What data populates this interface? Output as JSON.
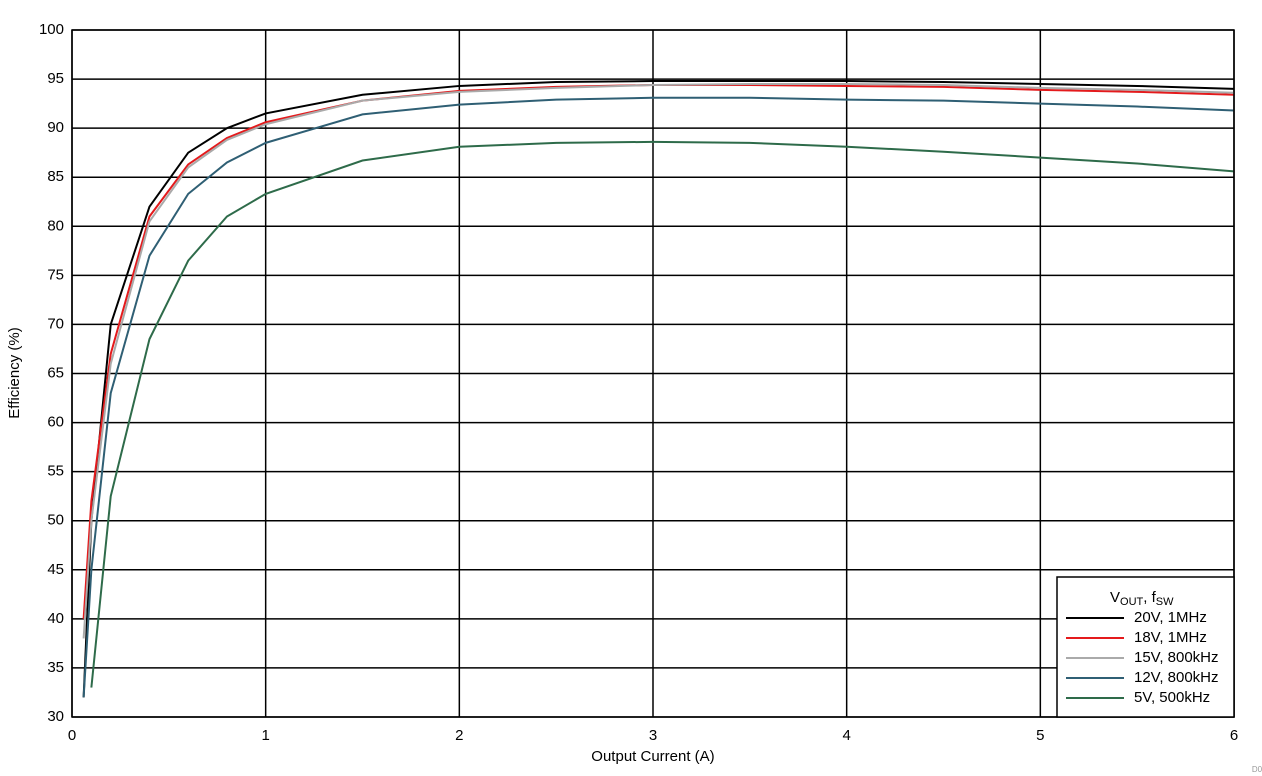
{
  "chart_data": {
    "type": "line",
    "xlabel": "Output Current (A)",
    "ylabel": "Efficiency (%)",
    "legend_title": [
      "V",
      "OUT",
      ", f",
      "SW"
    ],
    "figure_id": "D0",
    "x": [
      0.06,
      0.1,
      0.2,
      0.4,
      0.6,
      0.8,
      1,
      1.5,
      2,
      2.5,
      3,
      3.5,
      4,
      4.5,
      5,
      5.5,
      6
    ],
    "series": [
      {
        "name": "20V, 1MHz",
        "color": "#000000",
        "values": [
          32,
          50,
          70,
          82,
          87.5,
          90,
          91.5,
          93.4,
          94.3,
          94.7,
          94.8,
          94.8,
          94.8,
          94.7,
          94.5,
          94.3,
          94.0
        ]
      },
      {
        "name": "18V, 1MHz",
        "color": "#e41a1c",
        "values": [
          40,
          52,
          67,
          81,
          86.3,
          89,
          90.6,
          92.8,
          93.8,
          94.2,
          94.4,
          94.4,
          94.3,
          94.2,
          93.9,
          93.7,
          93.4
        ]
      },
      {
        "name": "15V, 800kHz",
        "color": "#aaaaaa",
        "values": [
          38,
          50,
          66,
          80.5,
          86,
          88.8,
          90.4,
          92.8,
          93.7,
          94.1,
          94.4,
          94.5,
          94.5,
          94.4,
          94.1,
          93.9,
          93.6
        ]
      },
      {
        "name": "12V, 800kHz",
        "color": "#2f5f74",
        "values": [
          32,
          45,
          63,
          77,
          83.3,
          86.5,
          88.5,
          91.4,
          92.4,
          92.9,
          93.1,
          93.1,
          92.9,
          92.8,
          92.5,
          92.2,
          91.8
        ]
      },
      {
        "name": "5V, 500kHz",
        "color": "#2e6b4a",
        "values": [
          null,
          33,
          52.5,
          68.5,
          76.5,
          81,
          83.3,
          86.7,
          88.1,
          88.5,
          88.6,
          88.5,
          88.1,
          87.6,
          87,
          86.4,
          85.6
        ]
      }
    ],
    "xlim": [
      0,
      6
    ],
    "xticks": [
      0,
      1,
      2,
      3,
      4,
      5,
      6
    ],
    "ylim": [
      30,
      100
    ],
    "yticks": [
      30,
      35,
      40,
      45,
      50,
      55,
      60,
      65,
      70,
      75,
      80,
      85,
      90,
      95,
      100
    ],
    "grid": true,
    "legend": "lower right"
  }
}
